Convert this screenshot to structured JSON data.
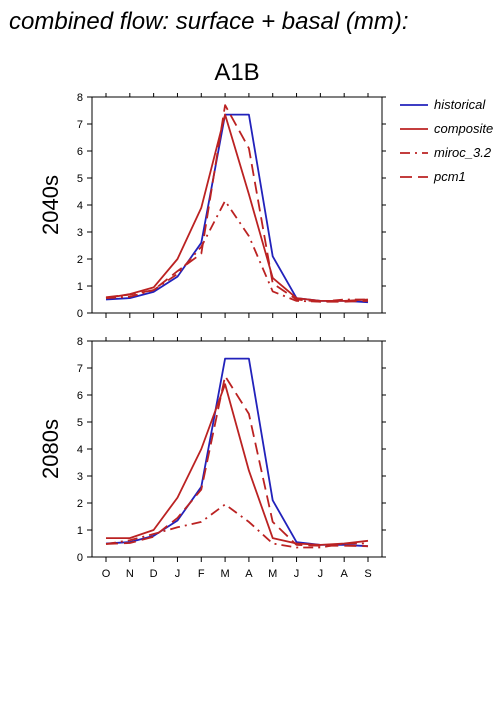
{
  "figure": {
    "title": "combined flow: surface + basal (mm):",
    "scenario": "A1B"
  },
  "colors": {
    "blue": "#2222bb",
    "red": "#bb2222"
  },
  "legend": {
    "position": "right",
    "entries": [
      {
        "label": "historical",
        "color": "#2222bb",
        "dash": "solid"
      },
      {
        "label": "composite",
        "color": "#bb2222",
        "dash": "solid"
      },
      {
        "label": "miroc_3.2",
        "color": "#bb2222",
        "dash": "dashdot"
      },
      {
        "label": "pcm1",
        "color": "#bb2222",
        "dash": "dashed"
      }
    ]
  },
  "chart_data": [
    {
      "type": "line",
      "ylabel": "2040s",
      "ylim": [
        0,
        8
      ],
      "yticks": [
        0,
        1,
        2,
        3,
        4,
        5,
        6,
        7,
        8
      ],
      "categories": [
        "O",
        "N",
        "D",
        "J",
        "F",
        "M",
        "A",
        "M",
        "J",
        "J",
        "A",
        "S"
      ],
      "series": [
        {
          "name": "historical",
          "values": [
            0.5,
            0.55,
            0.78,
            1.35,
            2.6,
            7.35,
            7.35,
            2.1,
            0.55,
            0.45,
            0.45,
            0.4
          ]
        },
        {
          "name": "composite",
          "values": [
            0.55,
            0.7,
            0.95,
            2.0,
            3.9,
            7.35,
            4.4,
            1.3,
            0.55,
            0.45,
            0.45,
            0.5
          ]
        },
        {
          "name": "miroc_3.2",
          "values": [
            0.55,
            0.6,
            0.85,
            1.45,
            2.45,
            4.15,
            2.85,
            0.8,
            0.45,
            0.42,
            0.5,
            0.5
          ]
        },
        {
          "name": "pcm1",
          "values": [
            0.58,
            0.68,
            0.85,
            1.55,
            2.2,
            7.7,
            6.1,
            1.1,
            0.5,
            0.42,
            0.42,
            0.45
          ]
        }
      ]
    },
    {
      "type": "line",
      "ylabel": "2080s",
      "ylim": [
        0,
        8
      ],
      "yticks": [
        0,
        1,
        2,
        3,
        4,
        5,
        6,
        7,
        8
      ],
      "categories": [
        "O",
        "N",
        "D",
        "J",
        "F",
        "M",
        "A",
        "M",
        "J",
        "J",
        "A",
        "S"
      ],
      "series": [
        {
          "name": "historical",
          "values": [
            0.5,
            0.55,
            0.78,
            1.35,
            2.6,
            7.35,
            7.35,
            2.1,
            0.55,
            0.45,
            0.45,
            0.4
          ]
        },
        {
          "name": "composite",
          "values": [
            0.7,
            0.7,
            1.0,
            2.2,
            4.0,
            6.4,
            3.2,
            0.7,
            0.5,
            0.45,
            0.5,
            0.6
          ]
        },
        {
          "name": "miroc_3.2",
          "values": [
            0.48,
            0.62,
            0.85,
            1.1,
            1.3,
            1.95,
            1.3,
            0.5,
            0.35,
            0.35,
            0.5,
            0.5
          ]
        },
        {
          "name": "pcm1",
          "values": [
            0.48,
            0.52,
            0.75,
            1.45,
            2.5,
            6.7,
            5.3,
            1.3,
            0.45,
            0.42,
            0.42,
            0.4
          ]
        }
      ]
    }
  ]
}
